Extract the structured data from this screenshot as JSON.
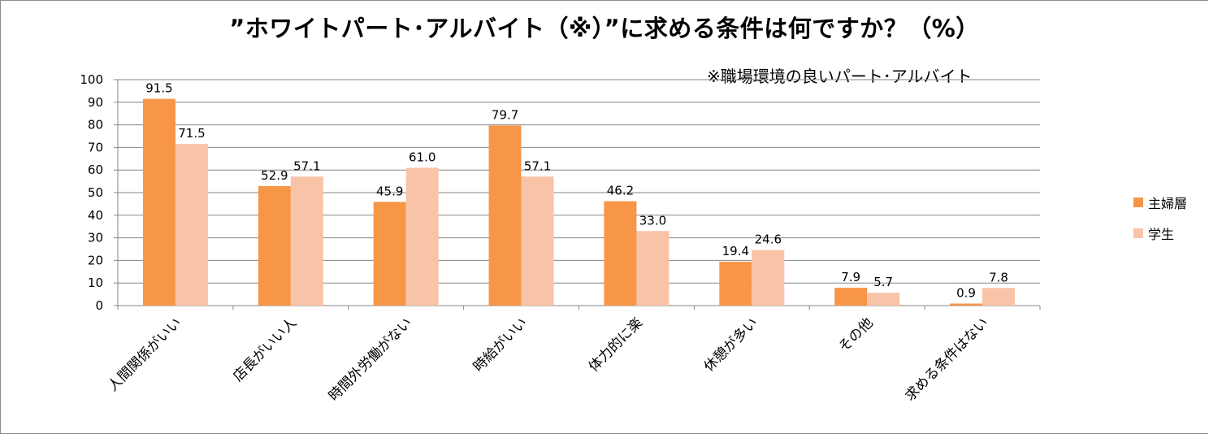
{
  "chart_data": {
    "type": "bar",
    "title": "”ホワイトパート･アルバイト（※）”に求める条件は何ですか？（%）",
    "annotation": "※職場環境の良いパート･アルバイト",
    "categories": [
      "人間関係がいい",
      "店長がいい人",
      "時間外労働がない",
      "時給がいい",
      "体力的に楽",
      "休憩が多い",
      "その他",
      "求める条件はない"
    ],
    "series": [
      {
        "name": "主婦層",
        "color": "#F79646",
        "values": [
          91.5,
          52.9,
          45.9,
          79.7,
          46.2,
          19.4,
          7.9,
          0.9
        ]
      },
      {
        "name": "学生",
        "color": "#F9C3A8",
        "values": [
          71.5,
          57.1,
          61.0,
          57.1,
          33.0,
          24.6,
          5.7,
          7.8
        ]
      }
    ],
    "ylim": [
      0,
      100
    ],
    "yticks": [
      0,
      10,
      20,
      30,
      40,
      50,
      60,
      70,
      80,
      90,
      100
    ],
    "grid": true,
    "legend": "right"
  }
}
